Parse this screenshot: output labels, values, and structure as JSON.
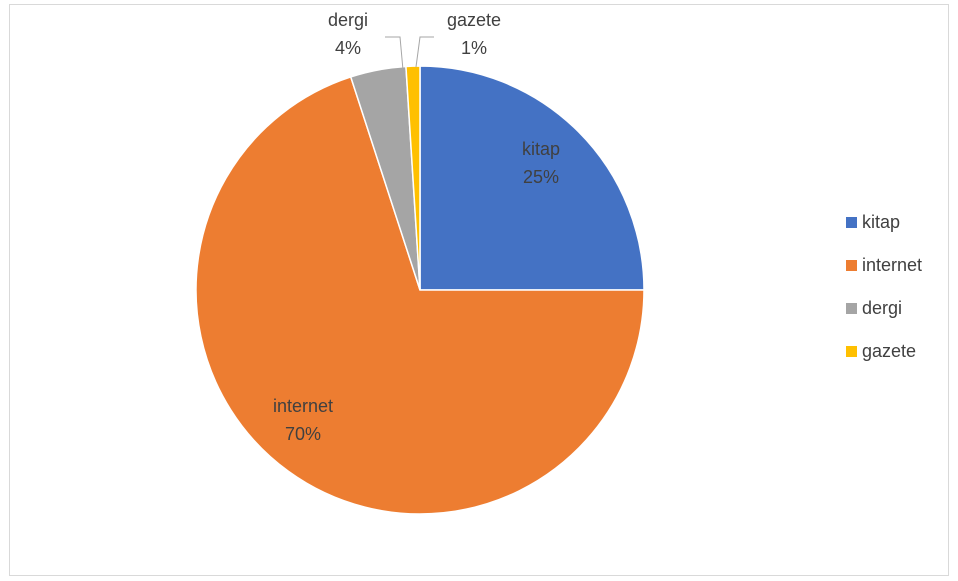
{
  "chart_data": {
    "type": "pie",
    "title": "",
    "categories": [
      "kitap",
      "internet",
      "dergi",
      "gazete"
    ],
    "values": [
      25,
      70,
      4,
      1
    ],
    "unit": "%",
    "colors": [
      "#4472c4",
      "#ed7d31",
      "#a5a5a5",
      "#ffc000"
    ],
    "data_labels": [
      {
        "category": "kitap",
        "value": "25%"
      },
      {
        "category": "internet",
        "value": "70%"
      },
      {
        "category": "dergi",
        "value": "4%"
      },
      {
        "category": "gazete",
        "value": "1%"
      }
    ],
    "legend": {
      "position": "right",
      "entries": [
        "kitap",
        "internet",
        "dergi",
        "gazete"
      ]
    }
  }
}
